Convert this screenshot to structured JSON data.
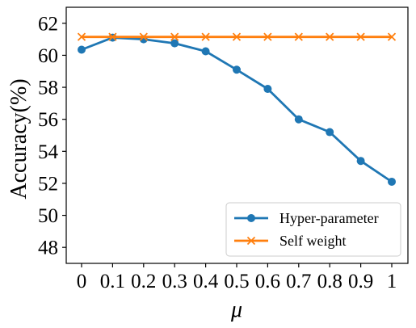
{
  "chart_data": {
    "type": "line",
    "x": [
      "0",
      "0.1",
      "0.2",
      "0.3",
      "0.4",
      "0.5",
      "0.6",
      "0.7",
      "0.8",
      "0.9",
      "1"
    ],
    "xlabel": "μ",
    "ylabel": "Accuracy(%)",
    "ylim": [
      47,
      63
    ],
    "yticks": [
      48,
      50,
      52,
      54,
      56,
      58,
      60,
      62
    ],
    "grid": false,
    "legend_position": "bottom-right",
    "series": [
      {
        "name": "Hyper-parameter",
        "color": "#1f77b4",
        "marker": "circle",
        "values": [
          60.35,
          61.1,
          61.0,
          60.75,
          60.25,
          59.1,
          57.9,
          56.0,
          55.2,
          53.4,
          52.1
        ]
      },
      {
        "name": "Self weight",
        "color": "#ff7f0e",
        "marker": "x",
        "values": [
          61.15,
          61.15,
          61.15,
          61.15,
          61.15,
          61.15,
          61.15,
          61.15,
          61.15,
          61.15,
          61.15
        ]
      }
    ]
  }
}
